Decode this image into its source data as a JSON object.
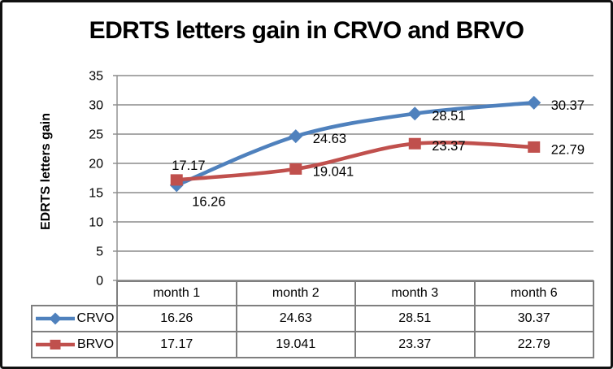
{
  "chart_data": {
    "type": "line",
    "title": "EDRTS letters gain in CRVO and BRVO",
    "ylabel": "EDRTS letters gain",
    "xlabel": "",
    "categories": [
      "month 1",
      "month 2",
      "month 3",
      "month 6"
    ],
    "series": [
      {
        "name": "CRVO",
        "color": "#4F81BD",
        "marker": "diamond",
        "values": [
          16.26,
          24.63,
          28.51,
          30.37
        ],
        "value_labels": [
          "16.26",
          "24.63",
          "28.51",
          "30.37"
        ],
        "label_positions": [
          "below",
          "right",
          "right",
          "right"
        ]
      },
      {
        "name": "BRVO",
        "color": "#C0504D",
        "marker": "square",
        "values": [
          17.17,
          19.041,
          23.37,
          22.79
        ],
        "value_labels": [
          "17.17",
          "19.041",
          "23.37",
          "22.79"
        ],
        "label_positions": [
          "above",
          "right",
          "right",
          "right"
        ]
      }
    ],
    "ylim": [
      0,
      35
    ],
    "yticks": [
      0,
      5,
      10,
      15,
      20,
      25,
      30,
      35
    ],
    "grid": true,
    "smooth": true,
    "legend_position": "table-left",
    "data_table_shown": true,
    "colors": {
      "gridline": "#8C8C8C",
      "table_border": "#7F7F7F",
      "text": "#000000",
      "background": "#FFFFFF",
      "frame_border": "#111111"
    }
  }
}
